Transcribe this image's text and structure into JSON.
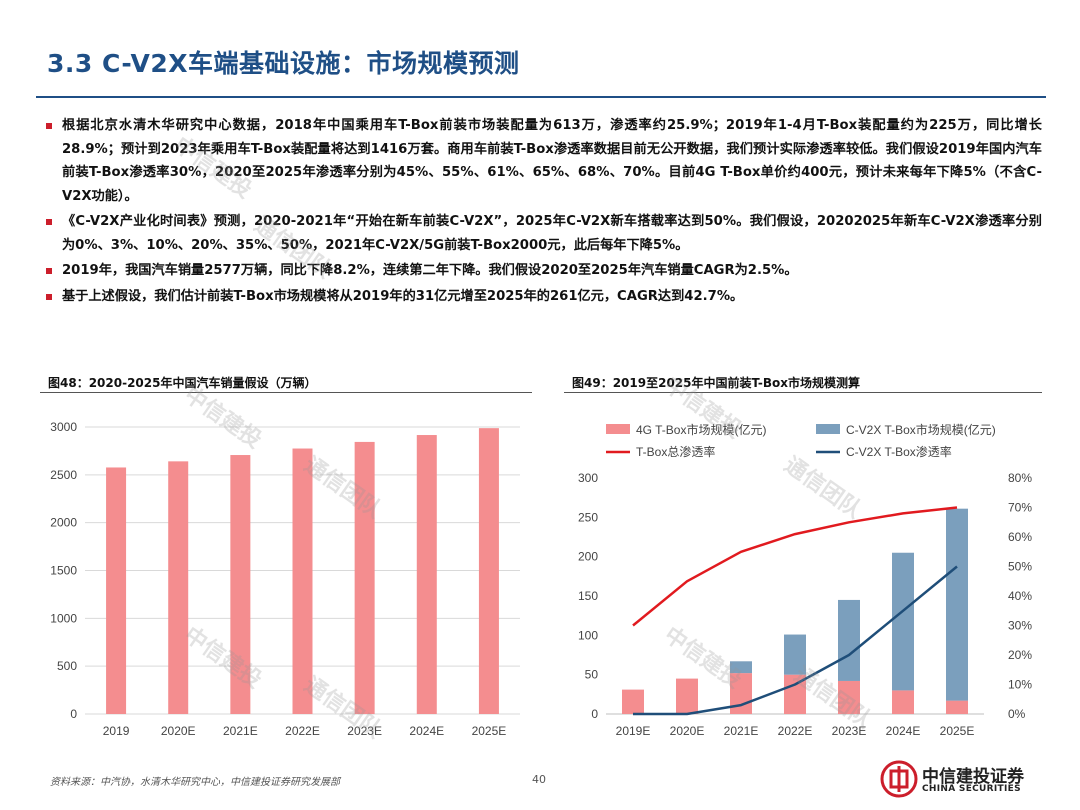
{
  "page": {
    "title": "3.3 C-V2X车端基础设施：市场规模预测",
    "page_number": "40",
    "source_note": "资料来源：中汽协，水清木华研究中心，中信建投证券研究发展部",
    "logo_cn": "中信建投证券",
    "logo_en": "CHINA SECURITIES",
    "watermark_a": "中信建投",
    "watermark_b": "通信团队",
    "colors": {
      "title": "#1f4f86",
      "bullet": "#cc1e2b",
      "bar_pink": "#f48d8f",
      "bar_blue": "#7b9fbd",
      "line_red": "#e11a1f",
      "line_navy": "#1f4e79"
    }
  },
  "bullets": [
    "根据北京水清木华研究中心数据，2018年中国乘用车T-Box前装市场装配量为613万，渗透率约25.9%；2019年1-4月T-Box装配量约为225万，同比增长28.9%；预计到2023年乘用车T-Box装配量将达到1416万套。商用车前装T-Box渗透率数据目前无公开数据，我们预计实际渗透率较低。我们假设2019年国内汽车前装T-Box渗透率30%，2020至2025年渗透率分别为45%、55%、61%、65%、68%、70%。目前4G T-Box单价约400元，预计未来每年下降5%（不含C-V2X功能）。",
    "《C-V2X产业化时间表》预测，2020-2021年“开始在新车前装C-V2X”，2025年C-V2X新车搭载率达到50%。我们假设，20202025年新车C-V2X渗透率分别为0%、3%、10%、20%、35%、50%，2021年C-V2X/5G前装T-Box2000元，此后每年下降5%。",
    "2019年，我国汽车销量2577万辆，同比下降8.2%，连续第二年下降。我们假设2020至2025年汽车销量CAGR为2.5%。",
    "基于上述假设，我们估计前装T-Box市场规模将从2019年的31亿元增至2025年的261亿元，CAGR达到42.7%。"
  ],
  "fig48_caption": "图48：2020-2025年中国汽车销量假设（万辆）",
  "fig49_caption": "图49：2019至2025年中国前装T-Box市场规模测算",
  "chart_data": [
    {
      "type": "bar",
      "categories": [
        "2019",
        "2020E",
        "2021E",
        "2022E",
        "2023E",
        "2024E",
        "2025E"
      ],
      "values": [
        2577,
        2641,
        2707,
        2775,
        2844,
        2916,
        2988
      ],
      "title": "",
      "ylim": [
        0,
        3000
      ],
      "yticks": [
        0,
        500,
        1000,
        1500,
        2000,
        2500,
        3000
      ],
      "grid": true
    },
    {
      "type": "bar",
      "stacked": true,
      "categories": [
        "2019E",
        "2020E",
        "2021E",
        "2022E",
        "2023E",
        "2024E",
        "2025E"
      ],
      "series": [
        {
          "name": "4G T-Box市场规模(亿元)",
          "kind": "bar",
          "axis": "left",
          "values": [
            31,
            45,
            52,
            50,
            42,
            30,
            17
          ]
        },
        {
          "name": "C-V2X T-Box市场规模(亿元)",
          "kind": "bar",
          "axis": "left",
          "values": [
            0,
            0,
            15,
            51,
            103,
            175,
            244
          ]
        },
        {
          "name": "T-Box总渗透率",
          "kind": "line",
          "axis": "right",
          "values": [
            0.3,
            0.45,
            0.55,
            0.61,
            0.65,
            0.68,
            0.7
          ]
        },
        {
          "name": "C-V2X T-Box渗透率",
          "kind": "line",
          "axis": "right",
          "values": [
            0,
            0,
            0.03,
            0.1,
            0.2,
            0.35,
            0.5
          ]
        }
      ],
      "ylim_left": [
        0,
        300
      ],
      "yticks_left": [
        0,
        50,
        100,
        150,
        200,
        250,
        300
      ],
      "ylim_right": [
        0,
        0.8
      ],
      "yticks_right": [
        "0%",
        "10%",
        "20%",
        "30%",
        "40%",
        "50%",
        "60%",
        "70%",
        "80%"
      ],
      "legend": "top"
    }
  ]
}
